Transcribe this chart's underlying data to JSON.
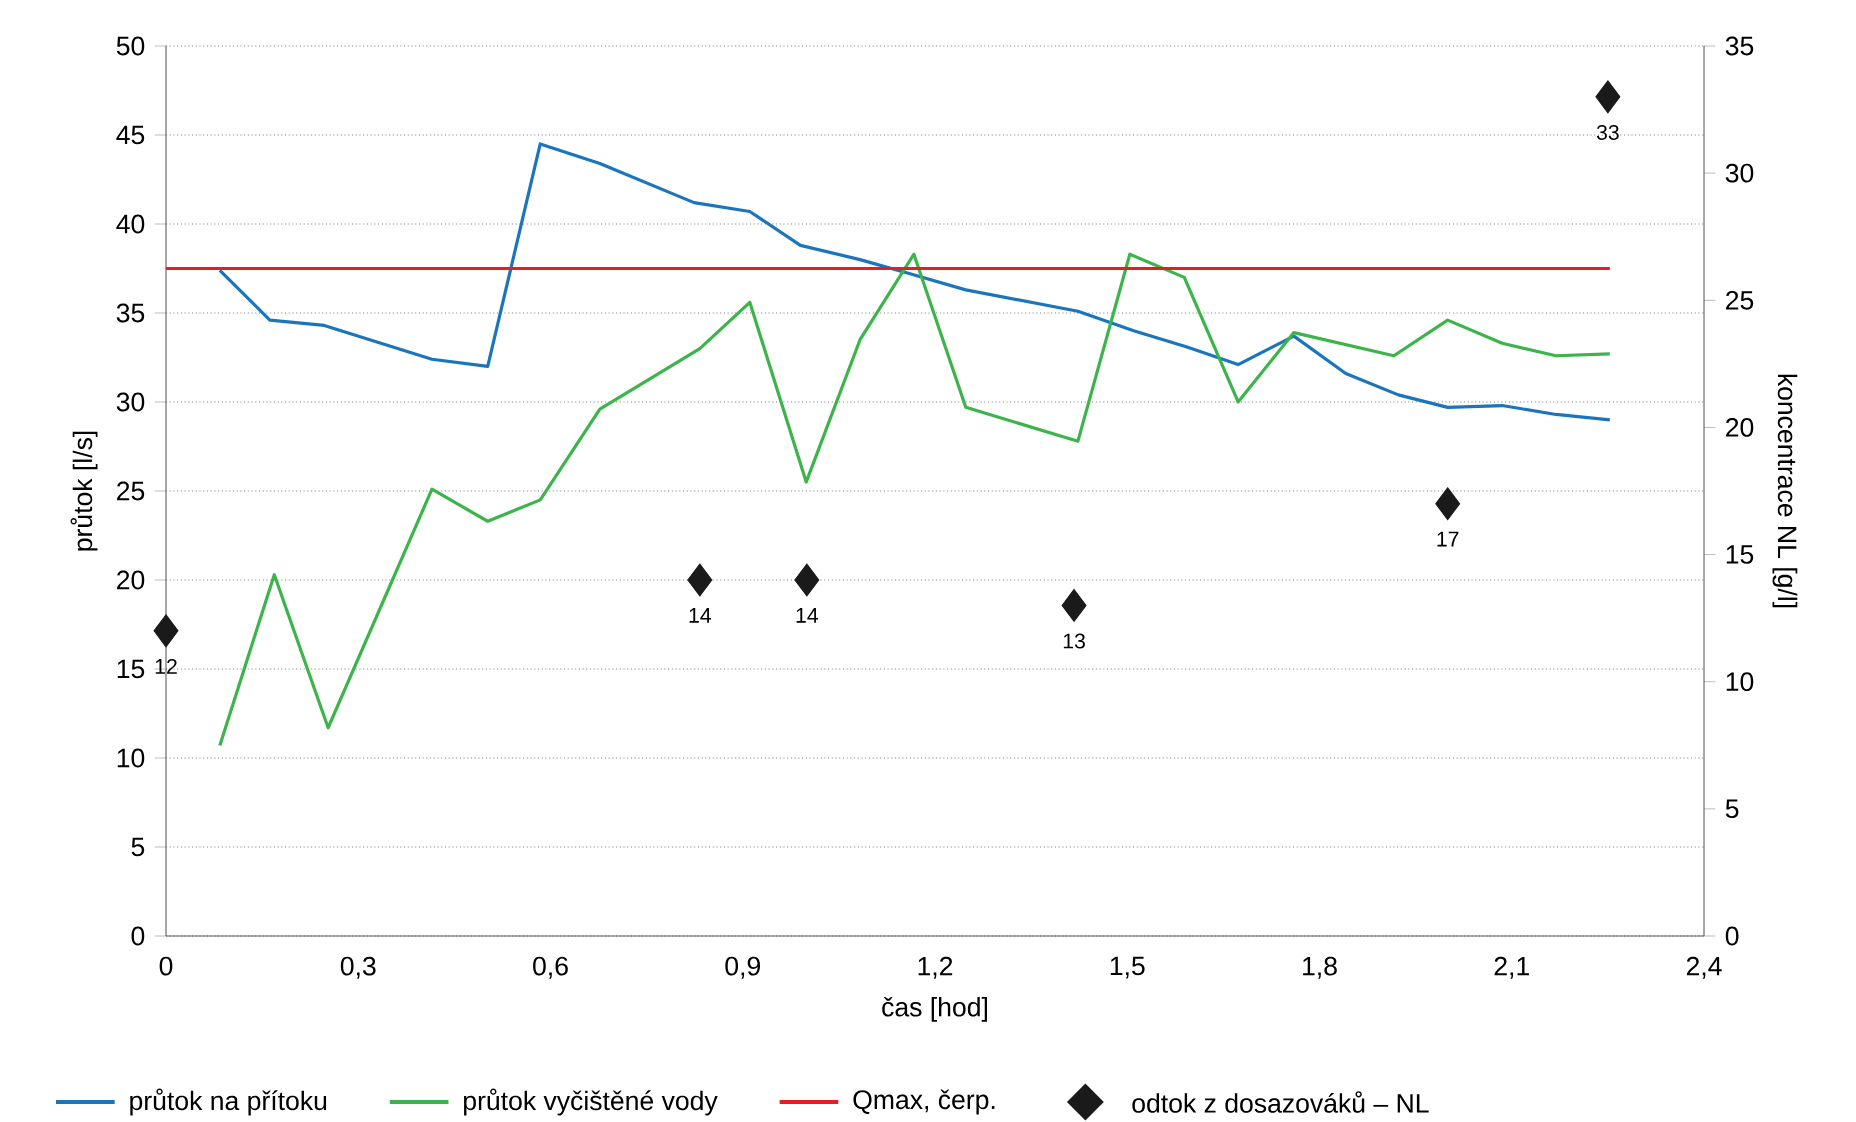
{
  "chart_data": {
    "type": "line",
    "xlabel": "čas [hod]",
    "ylabel": "průtok [l/s]",
    "y2label": "koncentrace NL [g/l]",
    "xlim": [
      0,
      2.4
    ],
    "xticks": [
      0,
      {
        "value": 0.3,
        "label": "0,3"
      },
      {
        "value": 0.6,
        "label": "0,6"
      },
      {
        "value": 0.9,
        "label": "0,9"
      },
      {
        "value": 1.2,
        "label": "1,2"
      },
      {
        "value": 1.5,
        "label": "1,5"
      },
      {
        "value": 1.8,
        "label": "1,8"
      },
      {
        "value": 2.1,
        "label": "2,1"
      },
      {
        "value": 2.4,
        "label": "2,4"
      }
    ],
    "ylim": [
      0,
      50
    ],
    "yticks": [
      0,
      5,
      10,
      15,
      20,
      25,
      30,
      35,
      40,
      45,
      50
    ],
    "y2lim": [
      0,
      35
    ],
    "y2ticks": [
      0,
      5,
      10,
      15,
      20,
      25,
      30,
      35
    ],
    "grid": "y",
    "legend": "bottom",
    "series": [
      {
        "name": "průtok na přítoku",
        "color": "#1b75bc",
        "x": [
          0.084,
          0.162,
          0.247,
          0.415,
          0.502,
          0.584,
          0.677,
          0.824,
          0.911,
          0.99,
          1.083,
          1.161,
          1.248,
          1.423,
          1.51,
          1.592,
          1.673,
          1.76,
          1.841,
          1.923,
          2.0,
          2.085,
          2.169,
          2.253
        ],
        "values": [
          37.4,
          34.6,
          34.3,
          32.4,
          32.0,
          44.5,
          43.4,
          41.2,
          40.7,
          38.8,
          38.0,
          37.2,
          36.3,
          35.1,
          34.0,
          33.1,
          32.1,
          33.7,
          31.6,
          30.4,
          29.7,
          29.8,
          29.3,
          29.0
        ]
      },
      {
        "name": "průtok vyčištěné vody",
        "color": "#3cb44b",
        "x": [
          0.084,
          0.169,
          0.253,
          0.415,
          0.502,
          0.584,
          0.677,
          0.833,
          0.911,
          0.999,
          1.083,
          1.167,
          1.248,
          1.423,
          1.504,
          1.589,
          1.673,
          1.76,
          1.916,
          2.0,
          2.085,
          2.169,
          2.253
        ],
        "values": [
          10.7,
          20.3,
          11.7,
          25.1,
          23.3,
          24.5,
          29.6,
          33.0,
          35.6,
          25.5,
          33.5,
          38.3,
          29.7,
          27.8,
          38.3,
          37.0,
          30.0,
          33.9,
          32.6,
          34.6,
          33.3,
          32.6,
          32.7
        ]
      },
      {
        "name": "Qmax, čerp.",
        "color": "#e31e24",
        "x": [
          0,
          2.253
        ],
        "values": [
          37.5,
          37.5
        ]
      },
      {
        "name": "odtok z dosazováků – NL",
        "type": "scatter",
        "axis": "y2",
        "marker": "diamond",
        "color": "#1a1a1a",
        "x": [
          0,
          0.833,
          1.0,
          1.417,
          2.0,
          2.25
        ],
        "values": [
          12,
          14,
          14,
          13,
          17,
          33
        ],
        "value_labels": [
          "12",
          "14",
          "14",
          "13",
          "17",
          "33"
        ]
      }
    ]
  }
}
